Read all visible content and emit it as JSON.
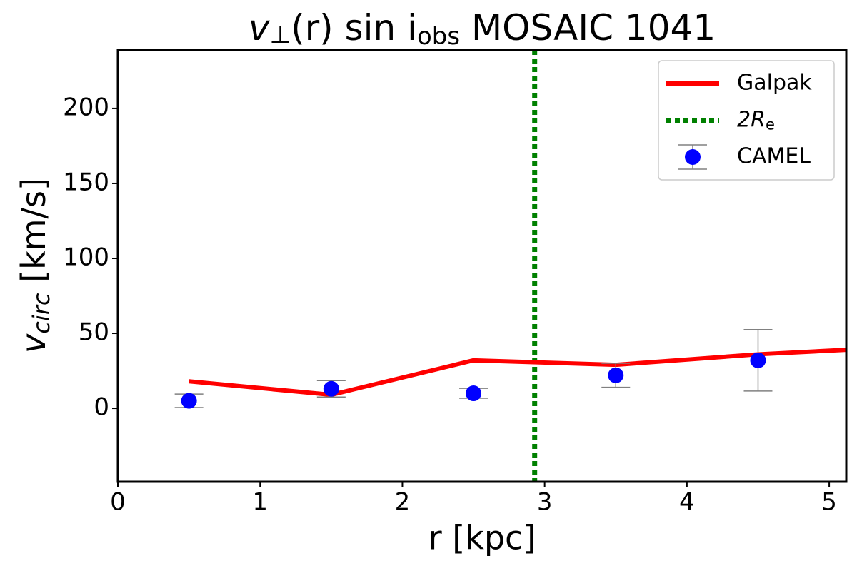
{
  "chart_data": {
    "type": "line",
    "title": [
      "v",
      "⊥",
      "(r) sin i",
      "obs",
      " MOSAIC 1041"
    ],
    "x_label": "r [kpc]",
    "y_label": [
      "v",
      "circ",
      " [km/s]"
    ],
    "xlim": [
      0,
      5.12
    ],
    "ylim": [
      -49,
      239
    ],
    "xticks": [
      0,
      1,
      2,
      3,
      4,
      5
    ],
    "yticks": [
      0,
      50,
      100,
      150,
      200
    ],
    "legend": "upper right",
    "series": [
      {
        "name": "Galpak",
        "style": "line",
        "color": "#ff0000",
        "x": [
          0.5,
          1.5,
          2.5,
          3.5,
          4.5,
          5.12
        ],
        "values": [
          18,
          9,
          32,
          29,
          36,
          39
        ]
      },
      {
        "name": [
          "2R",
          "e"
        ],
        "style": "vline",
        "color": "#008000",
        "x": [
          2.93
        ]
      },
      {
        "name": "CAMEL",
        "style": "errorbar",
        "color": "#0000ff",
        "error_color": "#808080",
        "x": [
          0.5,
          1.5,
          2.5,
          3.5,
          4.5
        ],
        "values": [
          5,
          13,
          10,
          22,
          32
        ],
        "errors": [
          4.5,
          5.5,
          3.3,
          8,
          20.5
        ]
      }
    ]
  }
}
